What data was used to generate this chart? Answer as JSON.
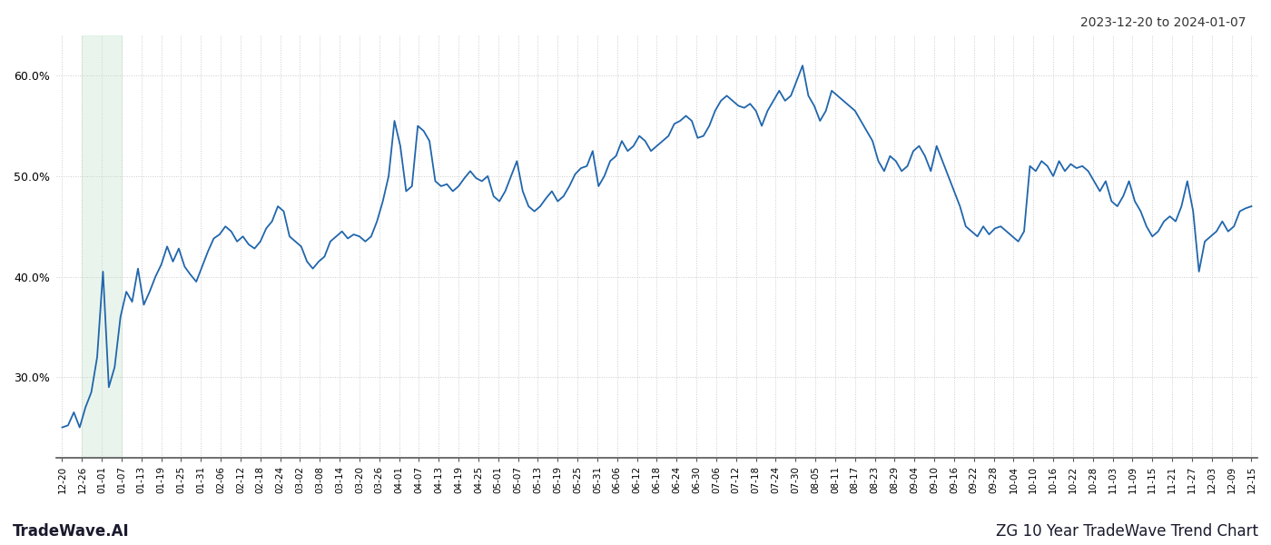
{
  "title_top_right": "2023-12-20 to 2024-01-07",
  "title_bottom_left": "TradeWave.AI",
  "title_bottom_right": "ZG 10 Year TradeWave Trend Chart",
  "line_color": "#2166ac",
  "line_width": 1.3,
  "shade_color": "#d4edda",
  "shade_alpha": 0.5,
  "background_color": "#ffffff",
  "grid_color": "#cccccc",
  "grid_linestyle": ":",
  "ylim": [
    22,
    64
  ],
  "yticks": [
    30.0,
    40.0,
    50.0,
    60.0
  ],
  "x_tick_labels": [
    "12-20",
    "12-26",
    "01-01",
    "01-07",
    "01-13",
    "01-19",
    "01-25",
    "01-31",
    "02-06",
    "02-12",
    "02-18",
    "02-24",
    "03-02",
    "03-08",
    "03-14",
    "03-20",
    "03-26",
    "04-01",
    "04-07",
    "04-13",
    "04-19",
    "04-25",
    "05-01",
    "05-07",
    "05-13",
    "05-19",
    "05-25",
    "05-31",
    "06-06",
    "06-12",
    "06-18",
    "06-24",
    "06-30",
    "07-06",
    "07-12",
    "07-18",
    "07-24",
    "07-30",
    "08-05",
    "08-11",
    "08-17",
    "08-23",
    "08-29",
    "09-04",
    "09-10",
    "09-16",
    "09-22",
    "09-28",
    "10-04",
    "10-10",
    "10-16",
    "10-22",
    "10-28",
    "11-03",
    "11-09",
    "11-15",
    "11-21",
    "11-27",
    "12-03",
    "12-09",
    "12-15"
  ],
  "shade_start_label": "12-26",
  "shade_end_label": "01-07",
  "y_data": [
    25.0,
    25.2,
    26.5,
    25.0,
    27.0,
    28.5,
    32.0,
    40.5,
    29.0,
    31.0,
    36.0,
    38.5,
    37.5,
    40.8,
    37.2,
    38.5,
    40.0,
    41.2,
    43.0,
    41.5,
    42.8,
    41.0,
    40.2,
    39.5,
    41.0,
    42.5,
    43.8,
    44.2,
    45.0,
    44.5,
    43.5,
    44.0,
    43.2,
    42.8,
    43.5,
    44.8,
    45.5,
    47.0,
    46.5,
    44.0,
    43.5,
    43.0,
    41.5,
    40.8,
    41.5,
    42.0,
    43.5,
    44.0,
    44.5,
    43.8,
    44.2,
    44.0,
    43.5,
    44.0,
    45.5,
    47.5,
    50.0,
    55.5,
    53.0,
    48.5,
    49.0,
    55.0,
    54.5,
    53.5,
    49.5,
    49.0,
    49.2,
    48.5,
    49.0,
    49.8,
    50.5,
    49.8,
    49.5,
    50.0,
    48.0,
    47.5,
    48.5,
    50.0,
    51.5,
    48.5,
    47.0,
    46.5,
    47.0,
    47.8,
    48.5,
    47.5,
    48.0,
    49.0,
    50.2,
    50.8,
    51.0,
    52.5,
    49.0,
    50.0,
    51.5,
    52.0,
    53.5,
    52.5,
    53.0,
    54.0,
    53.5,
    52.5,
    53.0,
    53.5,
    54.0,
    55.2,
    55.5,
    56.0,
    55.5,
    53.8,
    54.0,
    55.0,
    56.5,
    57.5,
    58.0,
    57.5,
    57.0,
    56.8,
    57.2,
    56.5,
    55.0,
    56.5,
    57.5,
    58.5,
    57.5,
    58.0,
    59.5,
    61.0,
    58.0,
    57.0,
    55.5,
    56.5,
    58.5,
    58.0,
    57.5,
    57.0,
    56.5,
    55.5,
    54.5,
    53.5,
    51.5,
    50.5,
    52.0,
    51.5,
    50.5,
    51.0,
    52.5,
    53.0,
    52.0,
    50.5,
    53.0,
    51.5,
    50.0,
    48.5,
    47.0,
    45.0,
    44.5,
    44.0,
    45.0,
    44.2,
    44.8,
    45.0,
    44.5,
    44.0,
    43.5,
    44.5,
    51.0,
    50.5,
    51.5,
    51.0,
    50.0,
    51.5,
    50.5,
    51.2,
    50.8,
    51.0,
    50.5,
    49.5,
    48.5,
    49.5,
    47.5,
    47.0,
    48.0,
    49.5,
    47.5,
    46.5,
    45.0,
    44.0,
    44.5,
    45.5,
    46.0,
    45.5,
    47.0,
    49.5,
    46.5,
    40.5,
    43.5,
    44.0,
    44.5,
    45.5,
    44.5,
    45.0,
    46.5,
    46.8,
    47.0
  ]
}
